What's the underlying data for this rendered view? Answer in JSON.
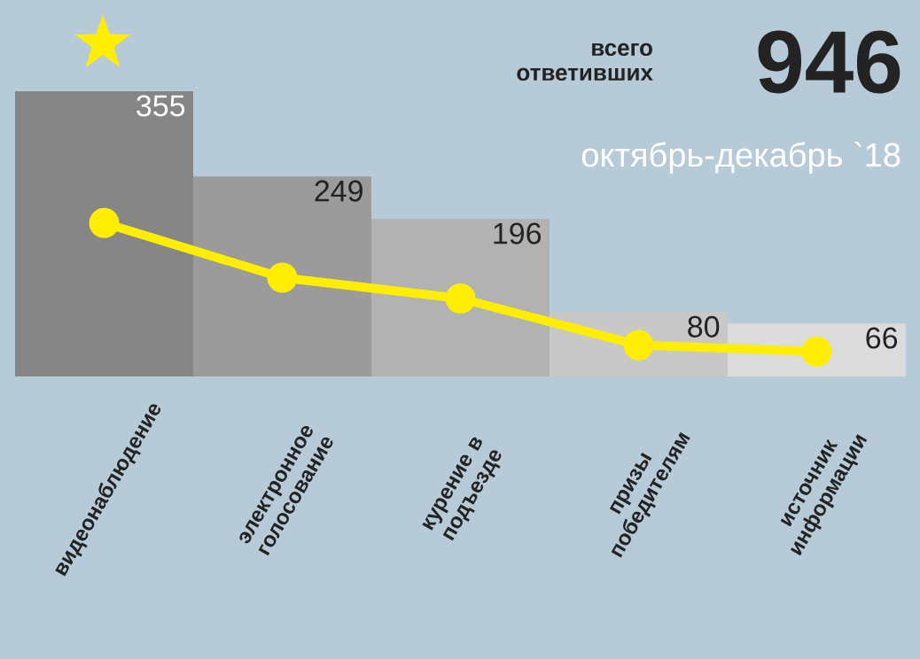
{
  "chart_data": {
    "type": "bar",
    "subtitle": "октябрь-декабрь `18",
    "annotations": [
      "всего ответивших",
      "946"
    ],
    "categories": [
      "видеонаблюдение",
      "электронное голосование",
      "курение в подъезде",
      "призы победителям",
      "источник информации"
    ],
    "series": [
      {
        "colors": [
          "#868686",
          "#9b9b9b",
          "#b2b2b2",
          "#c8c8c8",
          "#dcdcdc"
        ],
        "values": [
          355,
          249,
          196,
          80,
          66
        ],
        "value_labels": [
          "355",
          "249",
          "196",
          "80",
          "66"
        ]
      },
      {
        "type": "line",
        "color": "#ffee00",
        "line_style": "solid",
        "values": [
          191,
          123,
          97,
          39,
          31
        ]
      }
    ],
    "marker": "circle"
  }
}
